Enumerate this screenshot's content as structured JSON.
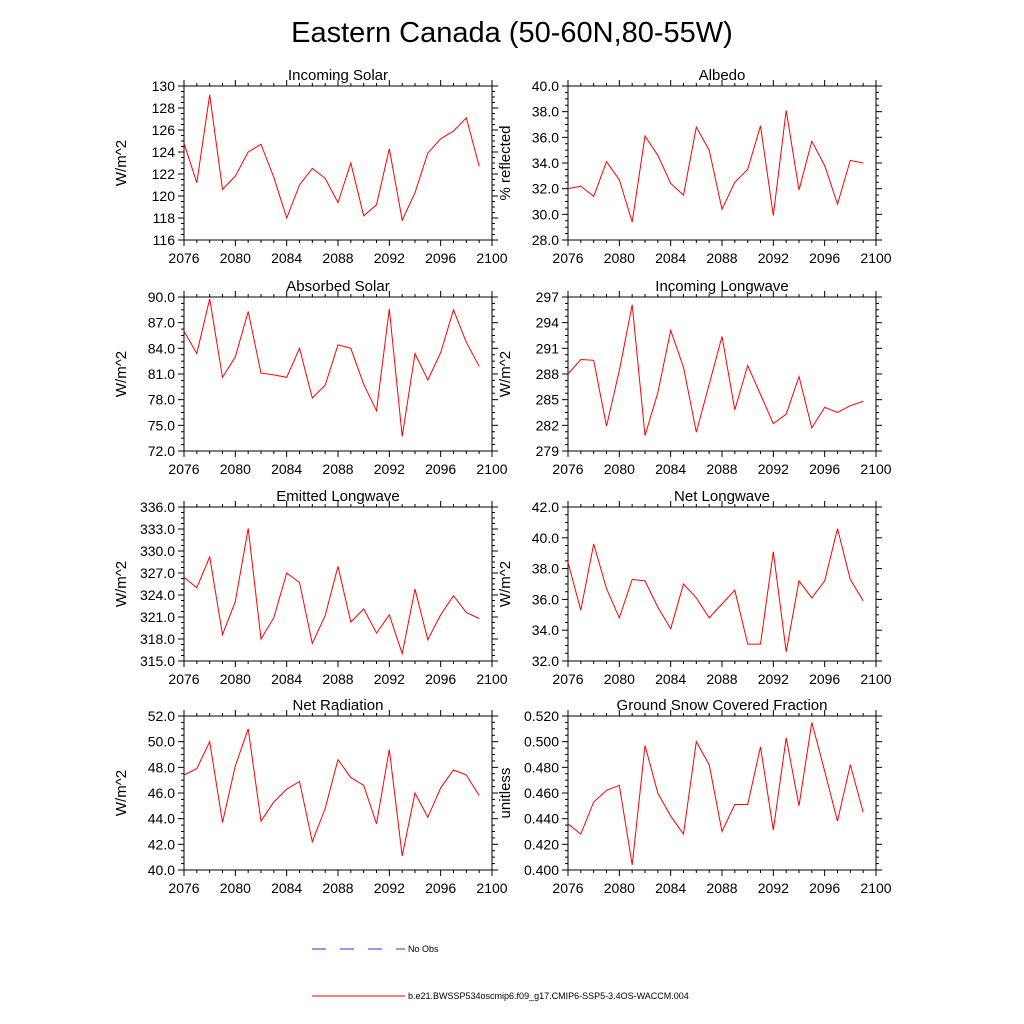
{
  "title": "Eastern Canada (50-60N,80-55W)",
  "series_color": "#ff0000",
  "obs_color": "#3333cc",
  "legend": {
    "obs_label": "No Obs",
    "model_label": "b.e21.BWSSP534oscmip6.f09_g17.CMIP6-SSP5-3.4OS-WACCM.004"
  },
  "chart_data": [
    {
      "type": "line",
      "title": "Incoming Solar",
      "ylabel": "W/m^2",
      "xlabel": "",
      "xlim": [
        2076,
        2100
      ],
      "ylim": [
        116,
        130
      ],
      "xticks": [
        2076,
        2080,
        2084,
        2088,
        2092,
        2096,
        2100
      ],
      "yticks": [
        116,
        118,
        120,
        122,
        124,
        126,
        128,
        130
      ],
      "ytick_labels": [
        "116",
        "118",
        "120",
        "122",
        "124",
        "126",
        "128",
        "130"
      ],
      "x": [
        2076,
        2077,
        2078,
        2079,
        2080,
        2081,
        2082,
        2083,
        2084,
        2085,
        2086,
        2087,
        2088,
        2089,
        2090,
        2091,
        2092,
        2093,
        2094,
        2095,
        2096,
        2097,
        2098,
        2099
      ],
      "values": [
        124.8,
        121.2,
        129.2,
        120.6,
        121.8,
        124.0,
        124.7,
        121.7,
        118.0,
        121.0,
        122.5,
        121.6,
        119.4,
        123.0,
        118.2,
        119.2,
        124.3,
        117.8,
        120.3,
        123.9,
        125.2,
        125.9,
        127.1,
        122.7
      ]
    },
    {
      "type": "line",
      "title": "Albedo",
      "ylabel": "% reflected",
      "xlabel": "",
      "xlim": [
        2076,
        2100
      ],
      "ylim": [
        28,
        40
      ],
      "xticks": [
        2076,
        2080,
        2084,
        2088,
        2092,
        2096,
        2100
      ],
      "yticks": [
        28,
        30,
        32,
        34,
        36,
        38,
        40
      ],
      "ytick_labels": [
        "28.0",
        "30.0",
        "32.0",
        "34.0",
        "36.0",
        "38.0",
        "40.0"
      ],
      "x": [
        2076,
        2077,
        2078,
        2079,
        2080,
        2081,
        2082,
        2083,
        2084,
        2085,
        2086,
        2087,
        2088,
        2089,
        2090,
        2091,
        2092,
        2093,
        2094,
        2095,
        2096,
        2097,
        2098,
        2099
      ],
      "values": [
        32.0,
        32.2,
        31.4,
        34.1,
        32.7,
        29.4,
        36.1,
        34.6,
        32.4,
        31.5,
        36.8,
        35.0,
        30.4,
        32.5,
        33.5,
        36.9,
        29.9,
        38.1,
        31.9,
        35.7,
        33.8,
        30.8,
        34.2,
        34.0
      ]
    },
    {
      "type": "line",
      "title": "Absorbed Solar",
      "ylabel": "W/m^2",
      "xlabel": "",
      "xlim": [
        2076,
        2100
      ],
      "ylim": [
        72,
        90
      ],
      "xticks": [
        2076,
        2080,
        2084,
        2088,
        2092,
        2096,
        2100
      ],
      "yticks": [
        72,
        75,
        78,
        81,
        84,
        87,
        90
      ],
      "ytick_labels": [
        "72.0",
        "75.0",
        "78.0",
        "81.0",
        "84.0",
        "87.0",
        "90.0"
      ],
      "x": [
        2076,
        2077,
        2078,
        2079,
        2080,
        2081,
        2082,
        2083,
        2084,
        2085,
        2086,
        2087,
        2088,
        2089,
        2090,
        2091,
        2092,
        2093,
        2094,
        2095,
        2096,
        2097,
        2098,
        2099
      ],
      "values": [
        86.0,
        83.4,
        89.8,
        80.6,
        83.0,
        88.3,
        81.1,
        80.9,
        80.6,
        84.0,
        78.2,
        79.7,
        84.4,
        84.0,
        79.8,
        76.7,
        88.6,
        73.7,
        83.4,
        80.3,
        83.5,
        88.5,
        84.7,
        81.9
      ]
    },
    {
      "type": "line",
      "title": "Incoming Longwave",
      "ylabel": "W/m^2",
      "xlabel": "",
      "xlim": [
        2076,
        2100
      ],
      "ylim": [
        279,
        297
      ],
      "xticks": [
        2076,
        2080,
        2084,
        2088,
        2092,
        2096,
        2100
      ],
      "yticks": [
        279,
        282,
        285,
        288,
        291,
        294,
        297
      ],
      "ytick_labels": [
        "279",
        "282",
        "285",
        "288",
        "291",
        "294",
        "297"
      ],
      "x": [
        2076,
        2077,
        2078,
        2079,
        2080,
        2081,
        2082,
        2083,
        2084,
        2085,
        2086,
        2087,
        2088,
        2089,
        2090,
        2091,
        2092,
        2093,
        2094,
        2095,
        2096,
        2097,
        2098,
        2099
      ],
      "values": [
        288.0,
        289.7,
        289.6,
        281.9,
        288.4,
        296.1,
        280.8,
        285.8,
        293.1,
        288.8,
        281.2,
        286.8,
        292.4,
        283.8,
        289.0,
        285.6,
        282.2,
        283.3,
        287.7,
        281.7,
        284.1,
        283.5,
        284.3,
        284.8
      ]
    },
    {
      "type": "line",
      "title": "Emitted Longwave",
      "ylabel": "W/m^2",
      "xlabel": "",
      "xlim": [
        2076,
        2100
      ],
      "ylim": [
        315,
        336
      ],
      "xticks": [
        2076,
        2080,
        2084,
        2088,
        2092,
        2096,
        2100
      ],
      "yticks": [
        315,
        318,
        321,
        324,
        327,
        330,
        333,
        336
      ],
      "ytick_labels": [
        "315.0",
        "318.0",
        "321.0",
        "324.0",
        "327.0",
        "330.0",
        "333.0",
        "336.0"
      ],
      "x": [
        2076,
        2077,
        2078,
        2079,
        2080,
        2081,
        2082,
        2083,
        2084,
        2085,
        2086,
        2087,
        2088,
        2089,
        2090,
        2091,
        2092,
        2093,
        2094,
        2095,
        2096,
        2097,
        2098,
        2099
      ],
      "values": [
        326.4,
        325.0,
        329.2,
        318.6,
        323.1,
        333.1,
        318.0,
        320.9,
        327.0,
        325.7,
        317.4,
        321.2,
        327.9,
        320.3,
        322.1,
        318.8,
        321.3,
        316.0,
        324.8,
        317.9,
        321.3,
        323.9,
        321.6,
        320.8
      ]
    },
    {
      "type": "line",
      "title": "Net Longwave",
      "ylabel": "W/m^2",
      "xlabel": "",
      "xlim": [
        2076,
        2100
      ],
      "ylim": [
        32,
        42
      ],
      "xticks": [
        2076,
        2080,
        2084,
        2088,
        2092,
        2096,
        2100
      ],
      "yticks": [
        32,
        34,
        36,
        38,
        40,
        42
      ],
      "ytick_labels": [
        "32.0",
        "34.0",
        "36.0",
        "38.0",
        "40.0",
        "42.0"
      ],
      "x": [
        2076,
        2077,
        2078,
        2079,
        2080,
        2081,
        2082,
        2083,
        2084,
        2085,
        2086,
        2087,
        2088,
        2089,
        2090,
        2091,
        2092,
        2093,
        2094,
        2095,
        2096,
        2097,
        2098,
        2099
      ],
      "values": [
        38.4,
        35.3,
        39.6,
        36.7,
        34.8,
        37.3,
        37.2,
        35.5,
        34.1,
        37.0,
        36.1,
        34.8,
        35.7,
        36.6,
        33.1,
        33.1,
        39.1,
        32.6,
        37.2,
        36.1,
        37.2,
        40.6,
        37.3,
        35.9
      ]
    },
    {
      "type": "line",
      "title": "Net Radiation",
      "ylabel": "W/m^2",
      "xlabel": "",
      "xlim": [
        2076,
        2100
      ],
      "ylim": [
        40,
        52
      ],
      "xticks": [
        2076,
        2080,
        2084,
        2088,
        2092,
        2096,
        2100
      ],
      "yticks": [
        40,
        42,
        44,
        46,
        48,
        50,
        52
      ],
      "ytick_labels": [
        "40.0",
        "42.0",
        "44.0",
        "46.0",
        "48.0",
        "50.0",
        "52.0"
      ],
      "x": [
        2076,
        2077,
        2078,
        2079,
        2080,
        2081,
        2082,
        2083,
        2084,
        2085,
        2086,
        2087,
        2088,
        2089,
        2090,
        2091,
        2092,
        2093,
        2094,
        2095,
        2096,
        2097,
        2098,
        2099
      ],
      "values": [
        47.4,
        47.9,
        50.0,
        43.7,
        48.1,
        51.0,
        43.8,
        45.3,
        46.3,
        46.9,
        42.2,
        44.8,
        48.6,
        47.2,
        46.6,
        43.6,
        49.4,
        41.1,
        46.0,
        44.1,
        46.4,
        47.8,
        47.4,
        45.8
      ]
    },
    {
      "type": "line",
      "title": "Ground Snow Covered Fraction",
      "ylabel": "unitless",
      "xlabel": "",
      "xlim": [
        2076,
        2100
      ],
      "ylim": [
        0.4,
        0.52
      ],
      "xticks": [
        2076,
        2080,
        2084,
        2088,
        2092,
        2096,
        2100
      ],
      "yticks": [
        0.4,
        0.42,
        0.44,
        0.46,
        0.48,
        0.5,
        0.52
      ],
      "ytick_labels": [
        "0.400",
        "0.420",
        "0.440",
        "0.460",
        "0.480",
        "0.500",
        "0.520"
      ],
      "x": [
        2076,
        2077,
        2078,
        2079,
        2080,
        2081,
        2082,
        2083,
        2084,
        2085,
        2086,
        2087,
        2088,
        2089,
        2090,
        2091,
        2092,
        2093,
        2094,
        2095,
        2096,
        2097,
        2098,
        2099
      ],
      "values": [
        0.436,
        0.428,
        0.453,
        0.462,
        0.466,
        0.404,
        0.497,
        0.46,
        0.442,
        0.428,
        0.5,
        0.482,
        0.43,
        0.451,
        0.451,
        0.496,
        0.431,
        0.503,
        0.45,
        0.515,
        0.477,
        0.438,
        0.482,
        0.445
      ]
    }
  ]
}
